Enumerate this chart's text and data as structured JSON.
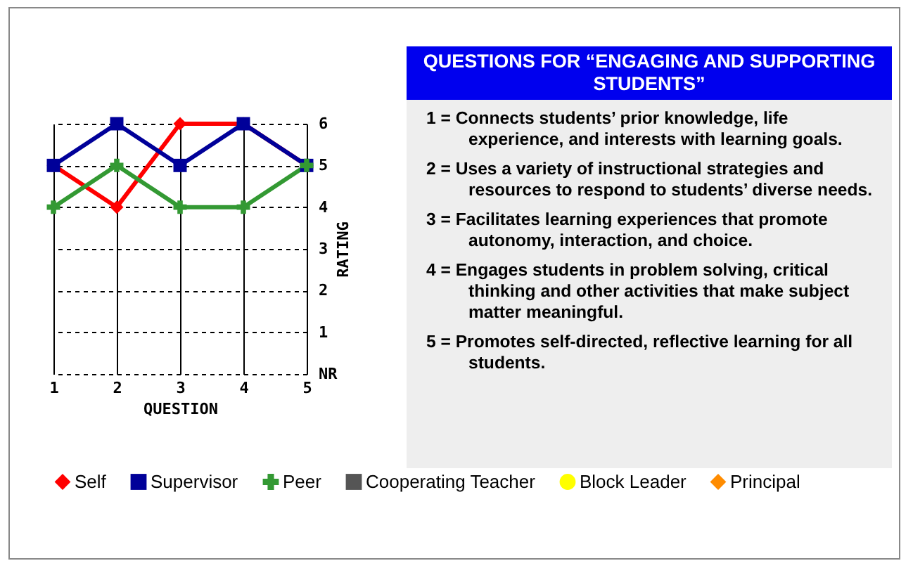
{
  "chart_data": [
    {
      "type": "line",
      "xlabel": "QUESTION",
      "ylabel": "RATING",
      "x": [
        1,
        2,
        3,
        4,
        5
      ],
      "xlim": [
        1,
        5
      ],
      "xticks": [
        1,
        2,
        3,
        4,
        5
      ],
      "ylim": [
        0,
        6
      ],
      "yticks": [
        {
          "value": 0,
          "label": "NR"
        },
        1,
        2,
        3,
        4,
        5,
        6
      ],
      "grid": true,
      "legend": "bottom",
      "series": [
        {
          "name": "Self",
          "color": "#ff0000",
          "marker": "diamond",
          "values": [
            5,
            4,
            6,
            6,
            5
          ]
        },
        {
          "name": "Supervisor",
          "color": "#000099",
          "marker": "square",
          "values": [
            5,
            6,
            5,
            6,
            5
          ]
        },
        {
          "name": "Peer",
          "color": "#339933",
          "marker": "cross",
          "values": [
            4,
            5,
            4,
            4,
            5
          ]
        },
        {
          "name": "Cooperating Teacher",
          "color": "#555555",
          "marker": "square",
          "values": [
            null,
            null,
            null,
            null,
            null
          ]
        },
        {
          "name": "Block Leader",
          "color": "#ffff00",
          "marker": "circle",
          "values": [
            null,
            null,
            null,
            null,
            null
          ]
        },
        {
          "name": "Principal",
          "color": "#ff8c00",
          "marker": "diamond",
          "values": [
            null,
            null,
            null,
            null,
            null
          ]
        }
      ]
    },
    {
      "type": "other",
      "title": "QUESTIONS FOR “ENGAGING AND SUPPORTING STUDENTS”",
      "annotations": [
        "1 = Connects students’ prior knowledge, life experience, and interests with learning goals.",
        "2 = Uses a variety of instructional strategies and resources to respond to students’ diverse needs.",
        "3 = Facilitates learning experiences that promote autonomy, interaction, and choice.",
        "4 = Engages students in problem solving, critical thinking and other activities that make subject matter meaningful.",
        "5 = Promotes self-directed, reflective learning for all students."
      ]
    }
  ]
}
